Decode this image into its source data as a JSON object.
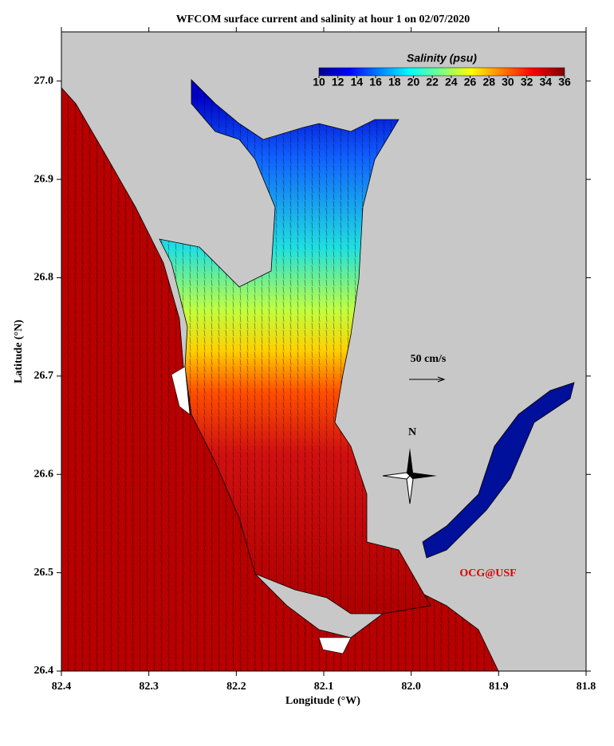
{
  "chart_data": {
    "type": "map",
    "title": "WFCOM surface current and salinity at hour 1 on 02/07/2020",
    "x_label": "Longitude (°W)",
    "y_label": "Latitude (°N)",
    "xlim": [
      82.4,
      81.8
    ],
    "xticks": [
      82.4,
      82.3,
      82.2,
      82.1,
      {
        "value": 82,
        "label": "82.0"
      },
      81.9,
      81.8
    ],
    "ylim": [
      26.4,
      27.05
    ],
    "yticks": [
      26.4,
      26.5,
      26.6,
      26.7,
      26.8,
      26.9,
      {
        "value": 27,
        "label": "27.0"
      }
    ],
    "colorbar": {
      "label": "Salinity (psu)",
      "lim": [
        10,
        36
      ],
      "ticks": [
        10,
        12,
        14,
        16,
        18,
        20,
        22,
        24,
        26,
        28,
        30,
        32,
        34,
        36
      ]
    },
    "scale_label": "50 cm/s",
    "north_label": "N",
    "credit": "OCG@USF"
  }
}
